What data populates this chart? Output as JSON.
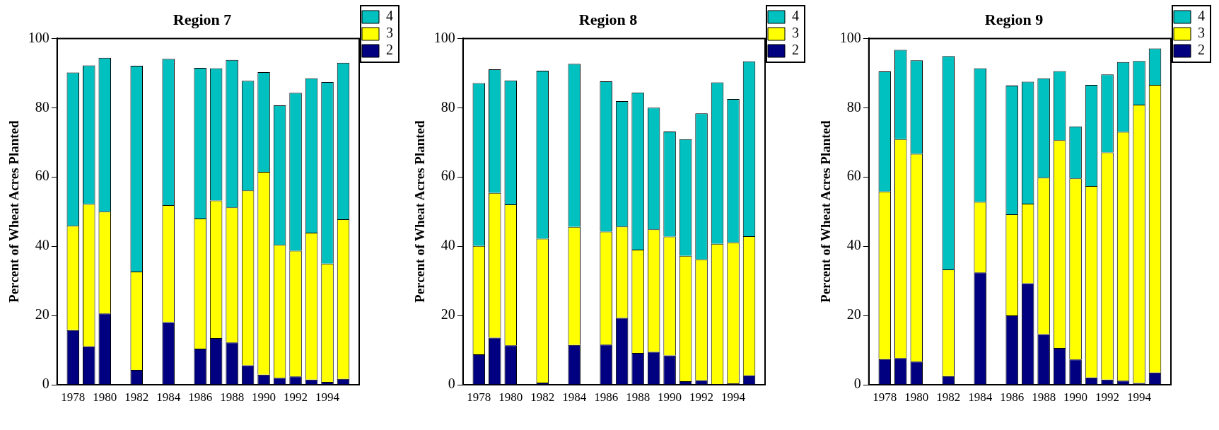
{
  "chart_data": [
    {
      "type": "bar",
      "title": "Region 7",
      "ylabel": "Percent of Wheat Acres Planted",
      "stacked": true,
      "legend": "top right",
      "x": [
        1978,
        1979,
        1980,
        1982,
        1984,
        1986,
        1987,
        1988,
        1989,
        1990,
        1991,
        1992,
        1993,
        1994,
        1995
      ],
      "xlim": [
        1977,
        1996
      ],
      "xticks": [
        1978,
        1980,
        1982,
        1984,
        1986,
        1988,
        1990,
        1992,
        1994
      ],
      "ylim": [
        0,
        100
      ],
      "yticks": [
        0,
        20,
        40,
        60,
        80,
        100
      ],
      "series": [
        {
          "name": "2",
          "color": "#000080",
          "values": [
            15.8,
            11.1,
            20.6,
            4.3,
            18.1,
            10.4,
            13.5,
            12.2,
            5.6,
            2.9,
            2.0,
            2.4,
            1.5,
            0.8,
            1.7
          ]
        },
        {
          "name": "3",
          "color": "#ffff00",
          "values": [
            30.1,
            41.1,
            29.4,
            28.4,
            33.8,
            37.6,
            39.7,
            39.0,
            50.5,
            58.6,
            38.4,
            36.3,
            42.4,
            34.2,
            46.1
          ]
        },
        {
          "name": "4",
          "color": "#00c0c0",
          "values": [
            44.3,
            40.0,
            44.4,
            59.4,
            42.2,
            43.5,
            38.2,
            42.6,
            31.7,
            28.8,
            40.3,
            45.6,
            44.6,
            52.4,
            45.2
          ]
        }
      ]
    },
    {
      "type": "bar",
      "title": "Region 8",
      "ylabel": "Percent of Wheat Acres Planted",
      "stacked": true,
      "legend": "top right",
      "x": [
        1978,
        1979,
        1980,
        1982,
        1984,
        1986,
        1987,
        1988,
        1989,
        1990,
        1991,
        1992,
        1993,
        1994,
        1995
      ],
      "xlim": [
        1977,
        1996
      ],
      "xticks": [
        1978,
        1980,
        1982,
        1984,
        1986,
        1988,
        1990,
        1992,
        1994
      ],
      "ylim": [
        0,
        100
      ],
      "yticks": [
        0,
        20,
        40,
        60,
        80,
        100
      ],
      "series": [
        {
          "name": "2",
          "color": "#000080",
          "values": [
            8.8,
            13.6,
            11.4,
            0.6,
            11.5,
            11.6,
            19.3,
            9.2,
            9.5,
            8.5,
            1.0,
            1.3,
            0.2,
            0.4,
            2.7
          ]
        },
        {
          "name": "3",
          "color": "#ffff00",
          "values": [
            31.3,
            41.8,
            40.7,
            41.6,
            34.1,
            32.6,
            26.4,
            29.8,
            35.4,
            34.3,
            36.2,
            34.9,
            40.5,
            40.7,
            40.2
          ]
        },
        {
          "name": "4",
          "color": "#00c0c0",
          "values": [
            47.0,
            35.7,
            35.8,
            48.5,
            47.1,
            43.4,
            36.2,
            45.4,
            35.1,
            30.3,
            33.7,
            42.2,
            46.6,
            41.4,
            50.5
          ]
        }
      ]
    },
    {
      "type": "bar",
      "title": "Region 9",
      "ylabel": "Percent of Wheat Acres Planted",
      "stacked": true,
      "legend": "top right",
      "x": [
        1978,
        1979,
        1980,
        1982,
        1984,
        1986,
        1987,
        1988,
        1989,
        1990,
        1991,
        1992,
        1993,
        1994,
        1995
      ],
      "xlim": [
        1977,
        1996
      ],
      "xticks": [
        1978,
        1980,
        1982,
        1984,
        1986,
        1988,
        1990,
        1992,
        1994
      ],
      "ylim": [
        0,
        100
      ],
      "yticks": [
        0,
        20,
        40,
        60,
        80,
        100
      ],
      "series": [
        {
          "name": "2",
          "color": "#000080",
          "values": [
            7.4,
            7.7,
            6.7,
            2.5,
            32.4,
            20.0,
            29.3,
            14.6,
            10.6,
            7.3,
            2.1,
            1.5,
            1.2,
            0.5,
            3.5
          ]
        },
        {
          "name": "3",
          "color": "#ffff00",
          "values": [
            48.4,
            63.2,
            60.0,
            30.8,
            20.4,
            29.2,
            23.0,
            45.2,
            60.0,
            52.3,
            55.3,
            65.6,
            71.8,
            80.4,
            83.1
          ]
        },
        {
          "name": "4",
          "color": "#00c0c0",
          "values": [
            34.7,
            25.8,
            27.0,
            61.6,
            38.6,
            37.2,
            35.2,
            28.7,
            20.0,
            15.0,
            29.2,
            22.5,
            20.2,
            12.6,
            10.5
          ]
        }
      ]
    }
  ]
}
